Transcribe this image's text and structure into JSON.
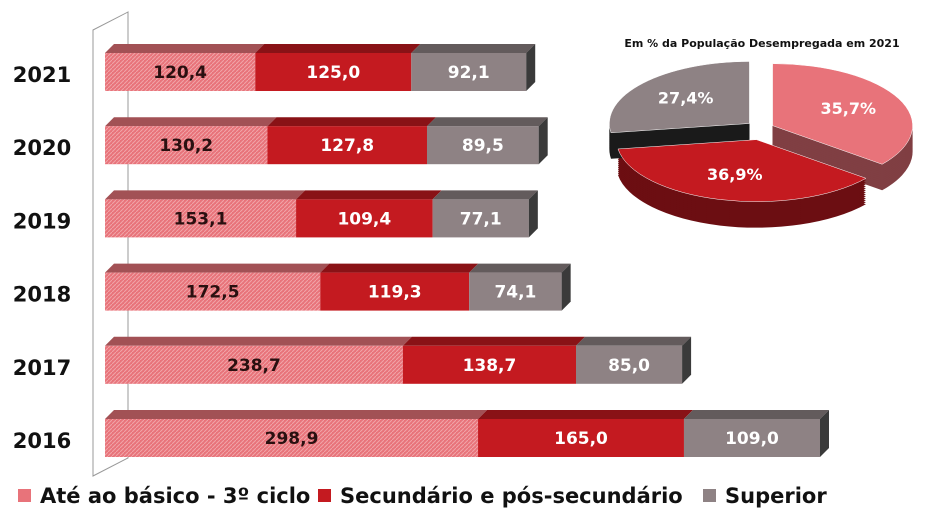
{
  "chart_data": [
    {
      "type": "stacked-bar-horizontal",
      "categories": [
        "2021",
        "2020",
        "2019",
        "2018",
        "2017",
        "2016"
      ],
      "series": [
        {
          "name": "Até ao básico - 3º ciclo",
          "color": "#e8737a",
          "values": [
            120.4,
            130.2,
            153.1,
            172.5,
            238.7,
            298.9
          ],
          "value_labels": [
            "120,4",
            "130,2",
            "153,1",
            "172,5",
            "238,7",
            "298,9"
          ]
        },
        {
          "name": "Secundário e pós-secundário",
          "color": "#c41a20",
          "values": [
            125.0,
            127.8,
            109.4,
            119.3,
            138.7,
            165.0
          ],
          "value_labels": [
            "125,0",
            "127,8",
            "109,4",
            "119,3",
            "138,7",
            "165,0"
          ]
        },
        {
          "name": "Superior",
          "color": "#8e8284",
          "values": [
            92.1,
            89.5,
            77.1,
            74.1,
            85.0,
            109.0
          ],
          "value_labels": [
            "92,1",
            "89,5",
            "77,1",
            "74,1",
            "85,0",
            "109,0"
          ]
        }
      ]
    },
    {
      "type": "pie",
      "title": "Em % da População Desempregada em 2021",
      "categories": [
        "Até ao básico - 3º ciclo",
        "Secundário e pós-secundário",
        "Superior"
      ],
      "values": [
        35.7,
        36.9,
        27.4
      ],
      "value_labels": [
        "35,7%",
        "36,9%",
        "27,4%"
      ],
      "colors": [
        "#e8737a",
        "#c41a20",
        "#8e8284"
      ]
    }
  ]
}
